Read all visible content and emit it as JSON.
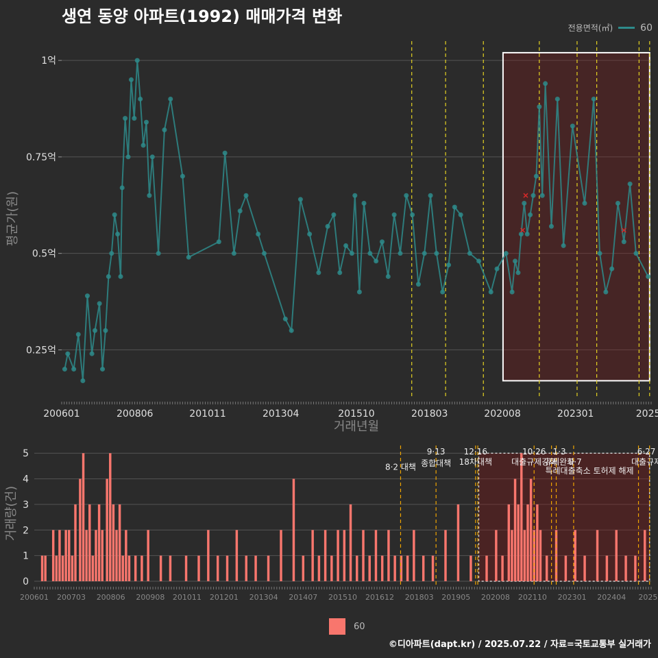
{
  "title": "생연 동양 아파트(1992) 매매가격 변화",
  "legend": {
    "title": "전용면적(㎡)",
    "label": "60"
  },
  "footer": "©디아파트(dapt.kr) / 2025.07.22 / 자료=국토교통부 실거래가",
  "colors": {
    "line": "#2e8b8b",
    "bar": "#f8766d",
    "policy": "#e5d321",
    "highlight": "#ffffff",
    "cancel": "#d62828"
  },
  "chart_data": [
    {
      "type": "line",
      "name": "price",
      "title": "생연 동양 아파트(1992) 매매가격 변화",
      "xlabel": "거래년월",
      "ylabel": "평균가(원)",
      "xlim": [
        2006.0,
        2025.5
      ],
      "ylim": [
        0.13,
        1.05
      ],
      "x_ticks": [
        {
          "x": 2006.0,
          "label": "200601"
        },
        {
          "x": 2008.42,
          "label": "200806"
        },
        {
          "x": 2010.83,
          "label": "201011"
        },
        {
          "x": 2013.25,
          "label": "201304"
        },
        {
          "x": 2015.75,
          "label": "201510"
        },
        {
          "x": 2018.17,
          "label": "201803"
        },
        {
          "x": 2020.58,
          "label": "202008"
        },
        {
          "x": 2023.0,
          "label": "202301"
        },
        {
          "x": 2025.4,
          "label": "2025"
        }
      ],
      "y_ticks": [
        {
          "y": 0.25,
          "label": "0.25억"
        },
        {
          "x": 0,
          "y": 0.5,
          "label": "0.5억"
        },
        {
          "y": 0.75,
          "label": "0.75억"
        },
        {
          "y": 1.0,
          "label": "1억"
        }
      ],
      "policy_lines": [
        2017.58,
        2018.7,
        2019.95,
        2021.8,
        2023.05,
        2023.7,
        2025.1,
        2025.45
      ],
      "highlight_box": {
        "x0": 2020.6,
        "x1": 2025.45,
        "y0": 0.17,
        "y1": 1.02
      },
      "cancelled_points": [
        {
          "x": 2021.25,
          "y": 0.56
        },
        {
          "x": 2021.35,
          "y": 0.65
        },
        {
          "x": 2024.6,
          "y": 0.56
        }
      ],
      "series": [
        {
          "name": "60",
          "x": [
            2006.1,
            2006.2,
            2006.4,
            2006.55,
            2006.7,
            2006.85,
            2007.0,
            2007.1,
            2007.25,
            2007.35,
            2007.45,
            2007.55,
            2007.65,
            2007.75,
            2007.85,
            2007.95,
            2008.0,
            2008.1,
            2008.2,
            2008.3,
            2008.4,
            2008.5,
            2008.6,
            2008.7,
            2008.8,
            2008.9,
            2009.0,
            2009.2,
            2009.4,
            2009.6,
            2010.0,
            2010.2,
            2011.2,
            2011.4,
            2011.7,
            2011.9,
            2012.1,
            2012.5,
            2012.7,
            2013.4,
            2013.6,
            2013.9,
            2014.2,
            2014.5,
            2014.8,
            2015.0,
            2015.2,
            2015.4,
            2015.6,
            2015.7,
            2015.85,
            2016.0,
            2016.2,
            2016.4,
            2016.6,
            2016.8,
            2017.0,
            2017.2,
            2017.4,
            2017.6,
            2017.8,
            2018.0,
            2018.2,
            2018.4,
            2018.6,
            2018.8,
            2019.0,
            2019.2,
            2019.5,
            2019.8,
            2020.2,
            2020.4,
            2020.7,
            2020.9,
            2021.0,
            2021.1,
            2021.2,
            2021.3,
            2021.4,
            2021.5,
            2021.6,
            2021.7,
            2021.8,
            2021.9,
            2022.0,
            2022.2,
            2022.4,
            2022.6,
            2022.9,
            2023.3,
            2023.6,
            2023.8,
            2024.0,
            2024.2,
            2024.4,
            2024.6,
            2024.8,
            2025.0,
            2025.4
          ],
          "y": [
            0.2,
            0.24,
            0.2,
            0.29,
            0.17,
            0.39,
            0.24,
            0.3,
            0.37,
            0.2,
            0.3,
            0.44,
            0.5,
            0.6,
            0.55,
            0.44,
            0.67,
            0.85,
            0.75,
            0.95,
            0.85,
            1.0,
            0.9,
            0.78,
            0.84,
            0.65,
            0.75,
            0.5,
            0.82,
            0.9,
            0.7,
            0.49,
            0.53,
            0.76,
            0.5,
            0.61,
            0.65,
            0.55,
            0.5,
            0.33,
            0.3,
            0.64,
            0.55,
            0.45,
            0.57,
            0.6,
            0.45,
            0.52,
            0.5,
            0.65,
            0.4,
            0.63,
            0.5,
            0.48,
            0.53,
            0.44,
            0.6,
            0.5,
            0.65,
            0.6,
            0.42,
            0.5,
            0.65,
            0.5,
            0.4,
            0.47,
            0.62,
            0.6,
            0.5,
            0.48,
            0.4,
            0.46,
            0.5,
            0.4,
            0.48,
            0.45,
            0.55,
            0.63,
            0.55,
            0.6,
            0.65,
            0.7,
            0.88,
            0.65,
            0.94,
            0.57,
            0.9,
            0.52,
            0.83,
            0.63,
            0.9,
            0.5,
            0.4,
            0.46,
            0.63,
            0.53,
            0.68,
            0.5,
            0.44
          ]
        }
      ]
    },
    {
      "type": "bar",
      "name": "volume",
      "xlabel": "",
      "ylabel": "거래량(건)",
      "xlim": [
        2006.0,
        2025.5
      ],
      "ylim": [
        0,
        5.3
      ],
      "x_ticks": [
        {
          "x": 2006.0,
          "label": "200601"
        },
        {
          "x": 2007.17,
          "label": "200703"
        },
        {
          "x": 2008.42,
          "label": "200806"
        },
        {
          "x": 2009.67,
          "label": "200908"
        },
        {
          "x": 2010.83,
          "label": "201011"
        },
        {
          "x": 2012.0,
          "label": "201201"
        },
        {
          "x": 2013.25,
          "label": "201304"
        },
        {
          "x": 2014.5,
          "label": "201407"
        },
        {
          "x": 2015.75,
          "label": "201510"
        },
        {
          "x": 2016.92,
          "label": "201612"
        },
        {
          "x": 2018.17,
          "label": "201803"
        },
        {
          "x": 2019.33,
          "label": "201905"
        },
        {
          "x": 2020.58,
          "label": "202008"
        },
        {
          "x": 2021.75,
          "label": "202110"
        },
        {
          "x": 2023.0,
          "label": "202301"
        },
        {
          "x": 2024.25,
          "label": "202404"
        },
        {
          "x": 2025.4,
          "label": "2025"
        }
      ],
      "y_ticks": [
        0,
        1,
        2,
        3,
        4,
        5
      ],
      "policy_lines": [
        2017.58,
        2018.7,
        2019.95,
        2020.02,
        2021.8,
        2022.35,
        2022.5,
        2023.05,
        2025.1,
        2025.45
      ],
      "highlight_box": {
        "x0": 2020.05,
        "x1": 2025.45,
        "y0": 0,
        "y1": 5.0
      },
      "annotations": [
        {
          "x": 2017.58,
          "y": 4.35,
          "text": "8·2 대책"
        },
        {
          "x": 2018.7,
          "y": 4.95,
          "text": "9·13"
        },
        {
          "x": 2018.7,
          "y": 4.5,
          "text": "종합대책"
        },
        {
          "x": 2019.95,
          "y": 4.95,
          "text": "12·16"
        },
        {
          "x": 2019.95,
          "y": 4.55,
          "text": "18차대책"
        },
        {
          "x": 2021.8,
          "y": 4.95,
          "text": "10·26"
        },
        {
          "x": 2021.8,
          "y": 4.55,
          "text": "대출규제강화"
        },
        {
          "x": 2022.6,
          "y": 4.95,
          "text": "1·3"
        },
        {
          "x": 2022.6,
          "y": 4.55,
          "text": "규제완화"
        },
        {
          "x": 2023.1,
          "y": 4.55,
          "text": "9·7"
        },
        {
          "x": 2023.55,
          "y": 4.2,
          "text": "특례대출축소 토허제 해제"
        },
        {
          "x": 2025.35,
          "y": 4.95,
          "text": "6·27"
        },
        {
          "x": 2025.35,
          "y": 4.55,
          "text": "대출규제"
        }
      ],
      "series": [
        {
          "name": "60",
          "x": [
            2006.25,
            2006.35,
            2006.6,
            2006.7,
            2006.8,
            2006.9,
            2007.0,
            2007.1,
            2007.2,
            2007.3,
            2007.45,
            2007.55,
            2007.65,
            2007.75,
            2007.85,
            2007.95,
            2008.05,
            2008.15,
            2008.3,
            2008.4,
            2008.5,
            2008.6,
            2008.7,
            2008.8,
            2008.9,
            2009.0,
            2009.2,
            2009.4,
            2009.6,
            2010.0,
            2010.3,
            2010.8,
            2011.2,
            2011.5,
            2011.8,
            2012.1,
            2012.4,
            2012.7,
            2013.0,
            2013.4,
            2013.8,
            2014.2,
            2014.5,
            2014.8,
            2015.0,
            2015.2,
            2015.4,
            2015.6,
            2015.8,
            2016.0,
            2016.2,
            2016.4,
            2016.6,
            2016.8,
            2017.0,
            2017.2,
            2017.4,
            2017.6,
            2017.8,
            2018.0,
            2018.3,
            2018.6,
            2019.0,
            2019.4,
            2019.8,
            2020.3,
            2020.6,
            2020.8,
            2021.0,
            2021.1,
            2021.2,
            2021.3,
            2021.4,
            2021.5,
            2021.6,
            2021.7,
            2021.8,
            2021.9,
            2022.0,
            2022.2,
            2022.5,
            2022.8,
            2023.1,
            2023.4,
            2023.8,
            2024.1,
            2024.4,
            2024.7,
            2025.0,
            2025.3
          ],
          "values": [
            1,
            1,
            2,
            1,
            2,
            1,
            2,
            2,
            1,
            3,
            4,
            5,
            2,
            3,
            1,
            2,
            3,
            2,
            4,
            5,
            3,
            2,
            3,
            1,
            2,
            1,
            1,
            1,
            2,
            1,
            1,
            1,
            1,
            2,
            1,
            1,
            2,
            1,
            1,
            1,
            2,
            4,
            1,
            2,
            1,
            2,
            1,
            2,
            2,
            3,
            1,
            2,
            1,
            2,
            1,
            2,
            1,
            1,
            1,
            2,
            1,
            1,
            2,
            3,
            1,
            1,
            2,
            1,
            3,
            2,
            4,
            3,
            5,
            2,
            3,
            4,
            2,
            3,
            2,
            1,
            2,
            1,
            2,
            1,
            2,
            1,
            2,
            1,
            1,
            2
          ]
        }
      ]
    }
  ]
}
